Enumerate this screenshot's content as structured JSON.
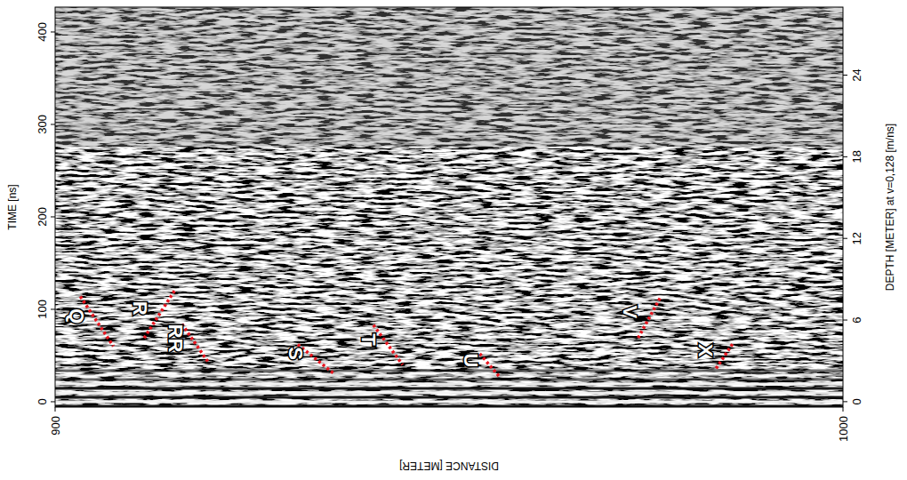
{
  "chart_data": {
    "type": "radargram",
    "x_label": "DISTANCE [METER]",
    "y_label": "TIME [ns]",
    "y2_label": "DEPTH [METER] at v=0,128 [m/ns]",
    "xlim": [
      900,
      1000
    ],
    "xticks": [
      900,
      1000
    ],
    "ylim": [
      -5.8,
      426.9
    ],
    "yticks": [
      0,
      100,
      200,
      300,
      400
    ],
    "y2lim": [
      -0.4,
      29.0
    ],
    "y2ticks": [
      0,
      6,
      12,
      18,
      24
    ],
    "series": [
      {
        "name": "Q",
        "color": "#e8141e",
        "line_style": "dotted",
        "x": [
          903.2,
          907.4
        ],
        "values": [
          114,
          60
        ]
      },
      {
        "name": "R",
        "color": "#e8141e",
        "line_style": "dotted",
        "x": [
          911.3,
          915.3
        ],
        "values": [
          69,
          122
        ]
      },
      {
        "name": "RR",
        "color": "#e8141e",
        "line_style": "dotted",
        "x": [
          916.1,
          919.5
        ],
        "values": [
          84,
          42
        ]
      },
      {
        "name": "S",
        "color": "#e8141e",
        "line_style": "dotted",
        "x": [
          930.8,
          935.3
        ],
        "values": [
          62,
          31
        ]
      },
      {
        "name": "T",
        "color": "#e8141e",
        "line_style": "dotted",
        "x": [
          940.4,
          944.1
        ],
        "values": [
          83,
          40
        ]
      },
      {
        "name": "U",
        "color": "#e8141e",
        "line_style": "dotted",
        "x": [
          953.9,
          956.5
        ],
        "values": [
          52,
          26
        ]
      },
      {
        "name": "V",
        "color": "#e8141e",
        "line_style": "dotted",
        "x": [
          974.0,
          976.9
        ],
        "values": [
          69,
          114
        ]
      },
      {
        "name": "X",
        "color": "#e8141e",
        "line_style": "dotted",
        "x": [
          983.9,
          986.1
        ],
        "values": [
          36,
          64
        ]
      }
    ]
  }
}
